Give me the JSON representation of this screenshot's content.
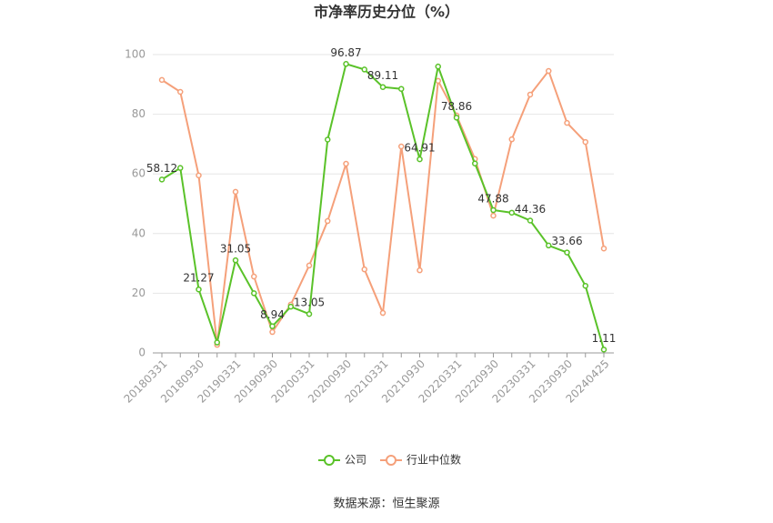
{
  "chart_data": {
    "type": "line",
    "title": "市净率历史分位（%）",
    "categories": [
      "20180331",
      null,
      "20180930",
      null,
      "20190331",
      null,
      "20190930",
      null,
      "20200331",
      null,
      "20200930",
      null,
      "20210331",
      null,
      "20210930",
      null,
      "20220331",
      null,
      "20220930",
      null,
      "20230331",
      null,
      "20230930",
      null,
      "20240425"
    ],
    "series": [
      {
        "name": "公司",
        "color": "#5ac229",
        "values": [
          58.12,
          62,
          21.27,
          3.5,
          31.05,
          20,
          8.94,
          15.5,
          13.05,
          71.5,
          96.87,
          95,
          89.11,
          88.5,
          64.91,
          96,
          78.86,
          63.5,
          47.88,
          47,
          44.36,
          36,
          33.66,
          22.5,
          1.11
        ]
      },
      {
        "name": "行业中位数",
        "color": "#f5a07a",
        "values": [
          91.5,
          87.5,
          59.5,
          2.7,
          54,
          25.6,
          7,
          16.2,
          29.3,
          44.2,
          63.4,
          28,
          13.4,
          69.2,
          27.7,
          91.2,
          79.6,
          65,
          46,
          71.6,
          86.6,
          94.5,
          77.1,
          70.7,
          35
        ]
      }
    ],
    "ylim": [
      0,
      100
    ],
    "yticks": [
      0,
      20,
      40,
      60,
      80,
      100
    ],
    "grid": true,
    "source": "数据来源：恒生聚源"
  }
}
